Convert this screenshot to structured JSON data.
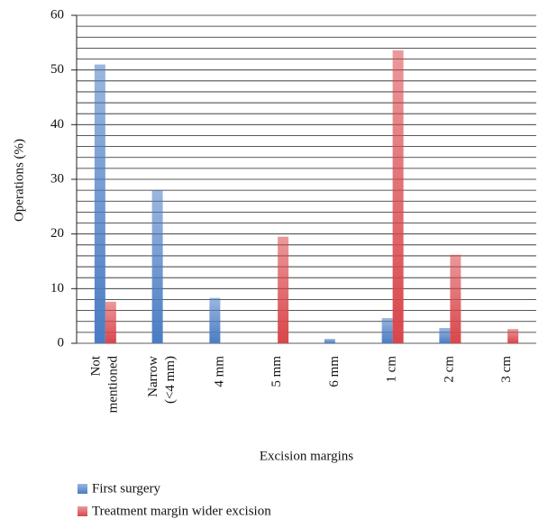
{
  "chart_data": {
    "type": "bar",
    "y_label": "Operations (%)",
    "x_label": "Excision margins",
    "categories": [
      "Not\nmentioned",
      "Narrow\n(<4 mm)",
      "4 mm",
      "5 mm",
      "6 mm",
      "1 cm",
      "2 cm",
      "3 cm"
    ],
    "series": [
      {
        "name": "First surgery",
        "color": "#4a7cc4",
        "values": [
          51,
          28,
          8.3,
          0,
          0.8,
          4.6,
          2.8,
          0
        ]
      },
      {
        "name": "Treatment margin wider excision",
        "color": "#d9464b",
        "values": [
          7.6,
          0,
          0,
          19.5,
          0,
          53.6,
          16.2,
          2.6
        ]
      }
    ],
    "ylim": [
      0,
      60
    ],
    "yticks": [
      0,
      10,
      20,
      30,
      40,
      50,
      60
    ],
    "minor_yticks": [
      2,
      4,
      6,
      8,
      12,
      14,
      16,
      18,
      22,
      24,
      26,
      28,
      32,
      34,
      36,
      38,
      42,
      44,
      46,
      48,
      52,
      54,
      56,
      58
    ],
    "grid": true
  }
}
